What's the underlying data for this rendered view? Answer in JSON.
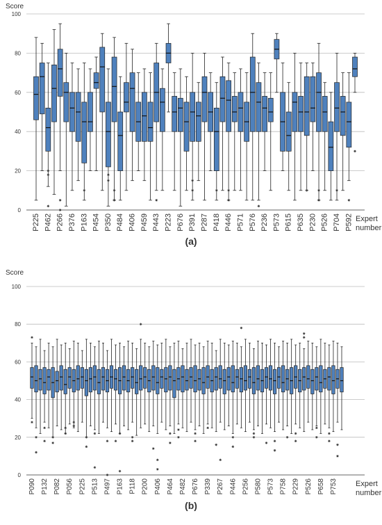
{
  "chart_data": [
    {
      "type": "box",
      "ylabel": "Score",
      "xlabel": [
        "Expert",
        "number"
      ],
      "caption": "(a)",
      "color": "#4f81bd",
      "ylim": [
        0,
        100
      ],
      "yticks": [
        0,
        20,
        40,
        60,
        80,
        100
      ],
      "grid": true,
      "categories": [
        "P225",
        null,
        "P462",
        null,
        "P266",
        null,
        "P376",
        null,
        "P163",
        null,
        "P454",
        null,
        "P350",
        null,
        "P484",
        null,
        "P406",
        null,
        "P459",
        null,
        "P443",
        null,
        "P223",
        null,
        "P676",
        null,
        "P391",
        null,
        "P287",
        null,
        "P418",
        null,
        "P446",
        null,
        "P571",
        null,
        "P576",
        null,
        "P236",
        null,
        "P573",
        null,
        "P615",
        null,
        "P635",
        null,
        "P230",
        null,
        "P526",
        null,
        "P704",
        null,
        "P592",
        null
      ],
      "boxes": [
        [
          5,
          46,
          59,
          68,
          88
        ],
        [
          20,
          49,
          68,
          75,
          85
        ],
        [
          12,
          30,
          42,
          52,
          75
        ],
        [
          8,
          45,
          62,
          74,
          92
        ],
        [
          20,
          58,
          72,
          82,
          95
        ],
        [
          2,
          45,
          60,
          65,
          80
        ],
        [
          10,
          40,
          52,
          60,
          75
        ],
        [
          15,
          35,
          50,
          60,
          72
        ],
        [
          5,
          24,
          45,
          55,
          75
        ],
        [
          20,
          40,
          45,
          60,
          72
        ],
        [
          20,
          62,
          65,
          70,
          78
        ],
        [
          10,
          50,
          73,
          83,
          90
        ],
        [
          2,
          22,
          40,
          55,
          72
        ],
        [
          5,
          45,
          63,
          78,
          88
        ],
        [
          5,
          20,
          38,
          50,
          68
        ],
        [
          10,
          50,
          55,
          65,
          85
        ],
        [
          15,
          40,
          62,
          70,
          82
        ],
        [
          20,
          35,
          45,
          55,
          70
        ],
        [
          15,
          35,
          48,
          60,
          72
        ],
        [
          5,
          35,
          42,
          55,
          70
        ],
        [
          10,
          45,
          60,
          75,
          85
        ],
        [
          10,
          40,
          55,
          62,
          72
        ],
        [
          50,
          75,
          80,
          85,
          95
        ],
        [
          10,
          40,
          50,
          58,
          70
        ],
        [
          2,
          40,
          52,
          57,
          72
        ],
        [
          10,
          30,
          45,
          55,
          68
        ],
        [
          5,
          35,
          50,
          60,
          80
        ],
        [
          15,
          35,
          48,
          55,
          65
        ],
        [
          5,
          45,
          60,
          68,
          80
        ],
        [
          20,
          40,
          50,
          60,
          70
        ],
        [
          5,
          20,
          40,
          52,
          65
        ],
        [
          10,
          45,
          57,
          68,
          78
        ],
        [
          5,
          40,
          56,
          66,
          75
        ],
        [
          10,
          45,
          50,
          58,
          70
        ],
        [
          10,
          40,
          52,
          60,
          72
        ],
        [
          5,
          35,
          45,
          55,
          70
        ],
        [
          5,
          40,
          60,
          78,
          90
        ],
        [
          5,
          40,
          55,
          65,
          75
        ],
        [
          20,
          40,
          52,
          58,
          70
        ],
        [
          10,
          45,
          50,
          57,
          70
        ],
        [
          60,
          77,
          82,
          87,
          90
        ],
        [
          20,
          30,
          45,
          60,
          75
        ],
        [
          10,
          30,
          38,
          50,
          65
        ],
        [
          5,
          40,
          55,
          60,
          80
        ],
        [
          10,
          40,
          50,
          58,
          75
        ],
        [
          10,
          38,
          50,
          68,
          75
        ],
        [
          20,
          45,
          52,
          68,
          75
        ],
        [
          5,
          40,
          60,
          70,
          85
        ],
        [
          10,
          40,
          50,
          58,
          65
        ],
        [
          5,
          20,
          32,
          45,
          60
        ],
        [
          5,
          40,
          52,
          65,
          80
        ],
        [
          10,
          38,
          50,
          58,
          70
        ],
        [
          15,
          32,
          45,
          55,
          70
        ],
        [
          60,
          68,
          72,
          78,
          80
        ]
      ],
      "outliers": [
        [],
        [],
        [
          18,
          20,
          2
        ],
        [],
        [
          0,
          5
        ],
        [],
        [],
        [],
        [
          10
        ],
        [],
        [],
        [],
        [
          18,
          15
        ],
        [
          5,
          10
        ],
        [],
        [],
        [],
        [],
        [],
        [],
        [
          5
        ],
        [],
        [],
        [],
        [],
        [],
        [
          15,
          10
        ],
        [],
        [],
        [],
        [
          10
        ],
        [],
        [
          10,
          5
        ],
        [],
        [],
        [],
        [],
        [
          2
        ],
        [],
        [],
        [],
        [],
        [],
        [],
        [],
        [
          10
        ],
        [],
        [
          5,
          10
        ],
        [],
        [],
        [
          10
        ],
        [],
        [
          5
        ],
        [
          30
        ]
      ]
    },
    {
      "type": "box",
      "ylabel": "Score",
      "xlabel": [
        "Expert",
        "number"
      ],
      "caption": "(b)",
      "color": "#4f81bd",
      "ylim": [
        0,
        100
      ],
      "yticks": [
        0,
        20,
        40,
        60,
        80,
        100
      ],
      "grid": true,
      "categories": [
        "P090",
        null,
        null,
        "P132",
        null,
        null,
        "P082",
        null,
        null,
        "P056",
        null,
        null,
        "P225",
        null,
        null,
        "P513",
        null,
        null,
        "P497",
        null,
        null,
        "P163",
        null,
        null,
        "P118",
        null,
        null,
        "P200",
        null,
        null,
        "P406",
        null,
        null,
        "P464",
        null,
        null,
        "P482",
        null,
        null,
        "P676",
        null,
        null,
        "P339",
        null,
        null,
        "P267",
        null,
        null,
        "P446",
        null,
        null,
        "P256",
        null,
        null,
        "P580",
        null,
        null,
        "P573",
        null,
        null,
        "P758",
        null,
        null,
        "P229",
        null,
        null,
        "P526",
        null,
        null,
        "P658",
        null,
        null,
        "P753",
        null,
        null
      ],
      "boxes": [
        [
          30,
          46,
          52,
          57,
          70
        ],
        [
          25,
          44,
          50,
          58,
          68
        ],
        [
          22,
          45,
          51,
          56,
          72
        ],
        [
          28,
          43,
          49,
          57,
          66
        ],
        [
          25,
          45,
          52,
          56,
          70
        ],
        [
          20,
          41,
          49,
          57,
          68
        ],
        [
          26,
          44,
          50,
          55,
          72
        ],
        [
          24,
          45,
          52,
          58,
          69
        ],
        [
          22,
          43,
          48,
          56,
          70
        ],
        [
          27,
          46,
          52,
          57,
          67
        ],
        [
          25,
          44,
          50,
          56,
          71
        ],
        [
          23,
          45,
          51,
          58,
          70
        ],
        [
          28,
          46,
          52,
          57,
          66
        ],
        [
          20,
          42,
          50,
          56,
          72
        ],
        [
          26,
          44,
          51,
          57,
          70
        ],
        [
          24,
          45,
          52,
          58,
          68
        ],
        [
          22,
          43,
          49,
          56,
          71
        ],
        [
          28,
          45,
          52,
          57,
          70
        ],
        [
          25,
          44,
          50,
          56,
          66
        ],
        [
          23,
          46,
          52,
          58,
          72
        ],
        [
          27,
          45,
          51,
          56,
          69
        ],
        [
          22,
          43,
          50,
          57,
          70
        ],
        [
          26,
          45,
          52,
          58,
          68
        ],
        [
          24,
          44,
          50,
          56,
          71
        ],
        [
          28,
          46,
          52,
          57,
          70
        ],
        [
          21,
          43,
          49,
          56,
          67
        ],
        [
          25,
          45,
          51,
          58,
          72
        ],
        [
          27,
          46,
          52,
          57,
          70
        ],
        [
          23,
          44,
          50,
          56,
          68
        ],
        [
          26,
          45,
          52,
          58,
          71
        ],
        [
          22,
          43,
          49,
          57,
          69
        ],
        [
          28,
          46,
          52,
          56,
          70
        ],
        [
          24,
          44,
          51,
          57,
          72
        ],
        [
          26,
          45,
          52,
          58,
          68
        ],
        [
          22,
          41,
          50,
          56,
          70
        ],
        [
          27,
          45,
          51,
          57,
          71
        ],
        [
          25,
          44,
          52,
          58,
          67
        ],
        [
          23,
          45,
          50,
          56,
          70
        ],
        [
          28,
          46,
          52,
          57,
          72
        ],
        [
          24,
          44,
          50,
          58,
          69
        ],
        [
          26,
          45,
          51,
          56,
          70
        ],
        [
          22,
          43,
          49,
          57,
          68
        ],
        [
          27,
          46,
          52,
          58,
          71
        ],
        [
          25,
          44,
          50,
          56,
          70
        ],
        [
          23,
          45,
          52,
          57,
          66
        ],
        [
          28,
          46,
          51,
          58,
          72
        ],
        [
          24,
          43,
          50,
          56,
          70
        ],
        [
          26,
          45,
          52,
          57,
          69
        ],
        [
          22,
          44,
          49,
          58,
          71
        ],
        [
          27,
          46,
          52,
          56,
          70
        ],
        [
          25,
          44,
          51,
          57,
          68
        ],
        [
          23,
          45,
          50,
          58,
          72
        ],
        [
          28,
          46,
          52,
          56,
          70
        ],
        [
          24,
          43,
          49,
          57,
          67
        ],
        [
          26,
          45,
          51,
          58,
          71
        ],
        [
          22,
          44,
          50,
          56,
          70
        ],
        [
          27,
          46,
          52,
          57,
          69
        ],
        [
          25,
          45,
          51,
          58,
          72
        ],
        [
          23,
          43,
          50,
          56,
          70
        ],
        [
          28,
          46,
          52,
          57,
          68
        ],
        [
          24,
          44,
          49,
          58,
          71
        ],
        [
          26,
          45,
          51,
          56,
          70
        ],
        [
          22,
          43,
          50,
          57,
          72
        ],
        [
          27,
          46,
          52,
          58,
          69
        ],
        [
          25,
          44,
          50,
          56,
          70
        ],
        [
          23,
          45,
          52,
          57,
          67
        ],
        [
          28,
          46,
          51,
          58,
          71
        ],
        [
          24,
          43,
          50,
          56,
          70
        ],
        [
          26,
          45,
          52,
          57,
          68
        ],
        [
          22,
          44,
          49,
          58,
          72
        ],
        [
          27,
          46,
          51,
          56,
          70
        ],
        [
          25,
          45,
          52,
          57,
          69
        ],
        [
          23,
          43,
          50,
          58,
          71
        ],
        [
          28,
          46,
          51,
          56,
          70
        ],
        [
          24,
          44,
          50,
          57,
          68
        ]
      ],
      "outliers": [
        [
          28,
          73
        ],
        [
          12,
          20
        ],
        [],
        [
          25,
          18
        ],
        [],
        [
          17,
          20
        ],
        [],
        [],
        [
          25,
          22
        ],
        [],
        [
          28,
          26
        ],
        [],
        [],
        [
          15,
          20
        ],
        [],
        [
          4,
          22
        ],
        [],
        [],
        [
          0,
          18
        ],
        [],
        [
          18
        ],
        [
          22,
          2
        ],
        [],
        [],
        [
          18,
          20
        ],
        [],
        [
          80
        ],
        [],
        [],
        [
          14
        ],
        [
          3,
          8
        ],
        [],
        [],
        [
          17,
          22
        ],
        [],
        [
          20,
          24
        ],
        [],
        [],
        [],
        [
          18,
          22
        ],
        [],
        [],
        [
          25
        ],
        [],
        [
          16
        ],
        [
          8
        ],
        [],
        [],
        [
          15,
          20
        ],
        [],
        [
          78
        ],
        [],
        [],
        [
          20,
          22
        ],
        [],
        [],
        [
          17
        ],
        [],
        [
          13,
          18
        ],
        [],
        [],
        [
          20
        ],
        [],
        [
          22,
          18
        ],
        [],
        [
          75,
          73
        ],
        [],
        [],
        [
          20,
          25
        ],
        [],
        [],
        [
          22,
          18
        ],
        [],
        [
          16,
          10
        ],
        []
      ]
    }
  ]
}
